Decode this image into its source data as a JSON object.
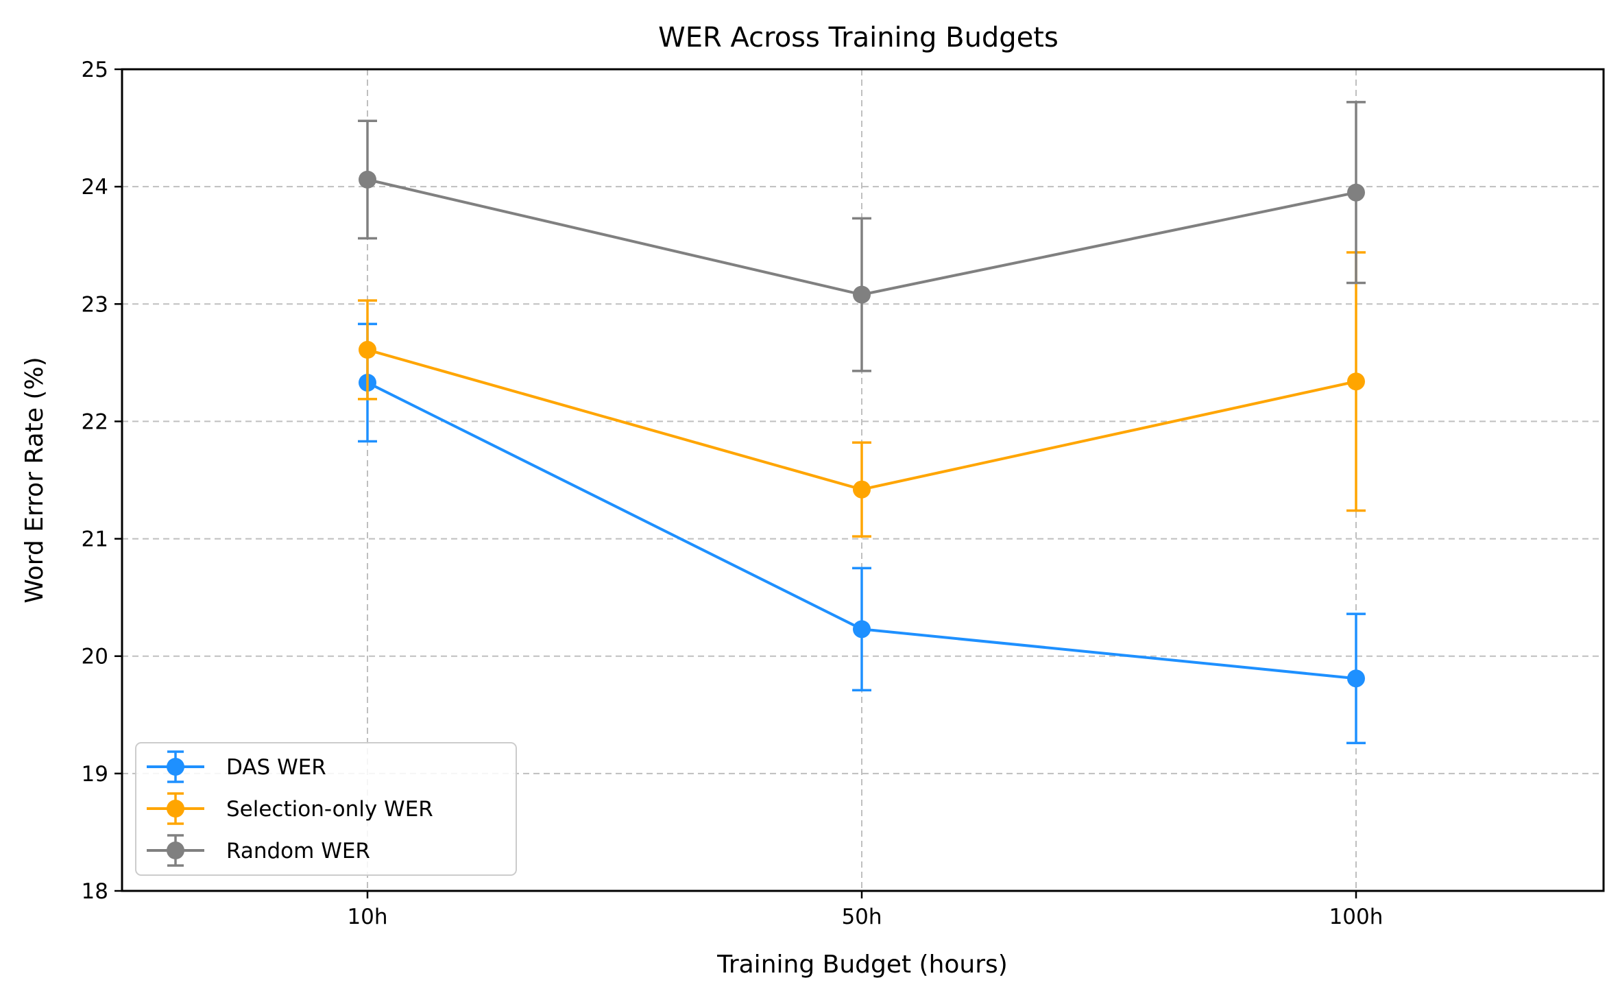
{
  "chart_data": {
    "type": "line",
    "title": "WER Across Training Budgets",
    "xlabel": "Training Budget (hours)",
    "ylabel": "Word Error Rate (%)",
    "categories": [
      "10h",
      "50h",
      "100h"
    ],
    "ylim": [
      18,
      25
    ],
    "yticks": [
      18,
      19,
      20,
      21,
      22,
      23,
      24,
      25
    ],
    "grid": true,
    "legend_position": "lower-left",
    "series": [
      {
        "name": "DAS WER",
        "color": "#1E90FF",
        "values": [
          22.33,
          20.23,
          19.81
        ],
        "errors": [
          0.5,
          0.52,
          0.55
        ]
      },
      {
        "name": "Selection-only WER",
        "color": "#FFA500",
        "values": [
          22.61,
          21.42,
          22.34
        ],
        "errors": [
          0.42,
          0.4,
          1.1
        ]
      },
      {
        "name": "Random WER",
        "color": "#808080",
        "values": [
          24.06,
          23.08,
          23.95
        ],
        "errors": [
          0.5,
          0.65,
          0.77
        ]
      }
    ]
  }
}
